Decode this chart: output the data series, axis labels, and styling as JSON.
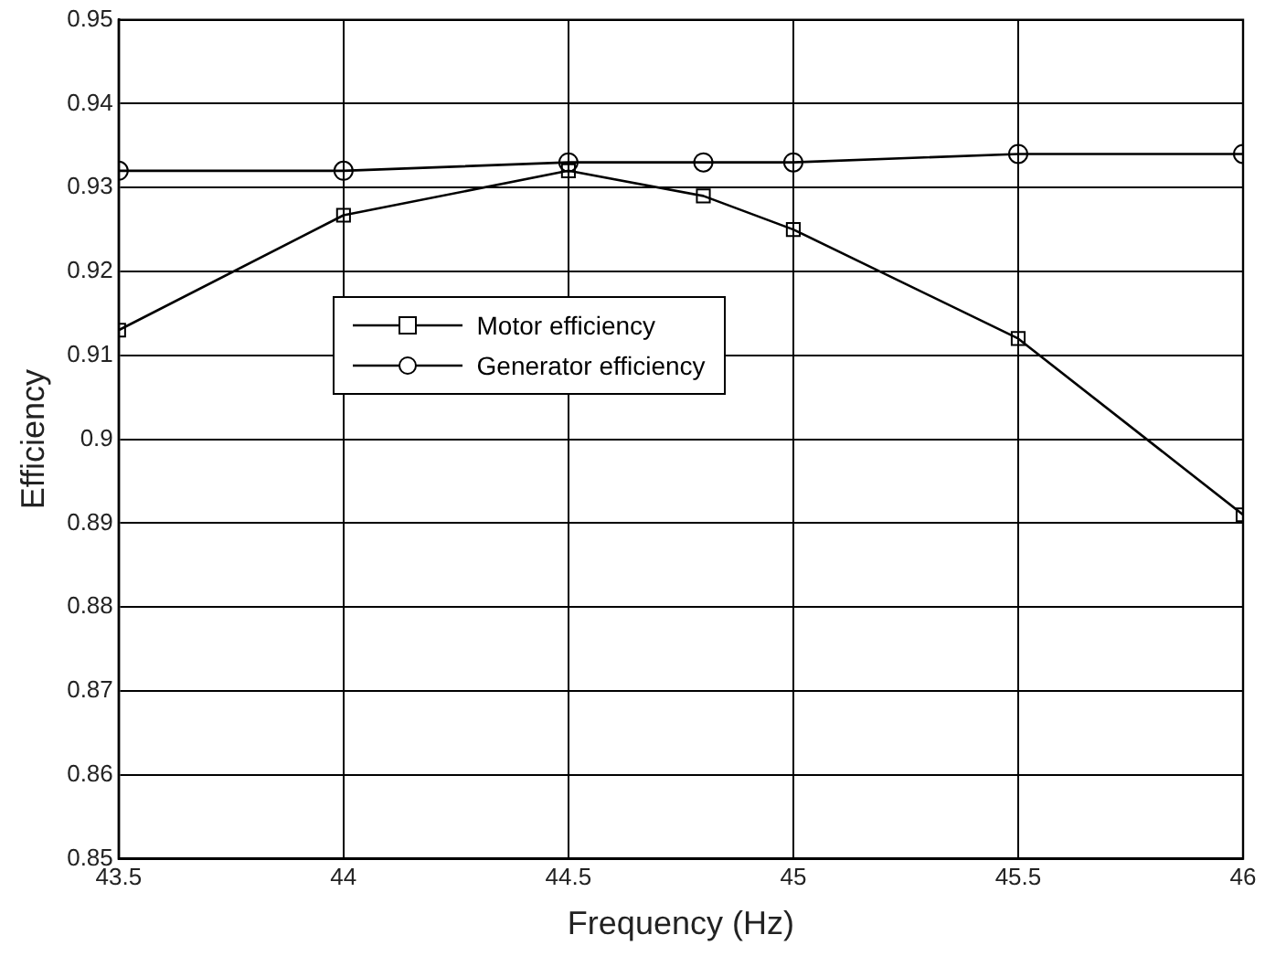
{
  "chart_data": {
    "type": "line",
    "xlabel": "Frequency (Hz)",
    "ylabel": "Efficiency",
    "xlim": [
      43.5,
      46
    ],
    "xticks": [
      43.5,
      44,
      44.5,
      45,
      45.5,
      46
    ],
    "ylim": [
      0.85,
      0.95
    ],
    "yticks": [
      0.85,
      0.86,
      0.87,
      0.88,
      0.89,
      0.9,
      0.91,
      0.92,
      0.93,
      0.94,
      0.95
    ],
    "grid": true,
    "legend": "center left",
    "line_style": "solid",
    "series": [
      {
        "name": "Motor efficiency",
        "color": "#000000",
        "marker": "square",
        "x": [
          43.5,
          44,
          44.5,
          44.8,
          45,
          45.5,
          46
        ],
        "values": [
          0.913,
          0.9267,
          0.932,
          0.929,
          0.925,
          0.912,
          0.891
        ]
      },
      {
        "name": "Generator efficiency",
        "color": "#000000",
        "marker": "circle",
        "x": [
          43.5,
          44,
          44.5,
          44.8,
          45,
          45.5,
          46
        ],
        "values": [
          0.932,
          0.932,
          0.933,
          0.933,
          0.933,
          0.934,
          0.934
        ]
      }
    ]
  }
}
